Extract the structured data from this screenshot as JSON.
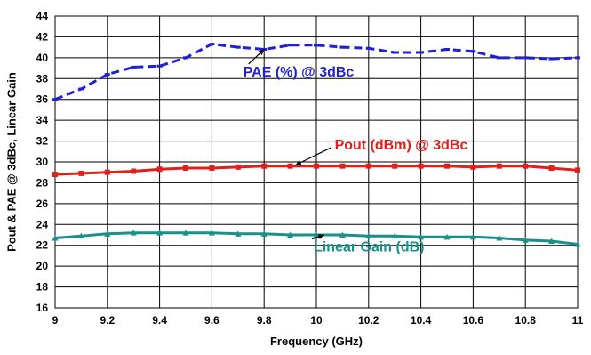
{
  "chart_data": {
    "type": "line",
    "xlabel": "Frequency (GHz)",
    "ylabel": "Pout  & PAE @ 3dBc, Linear  Gain",
    "xlim": [
      9,
      11
    ],
    "ylim": [
      16,
      44
    ],
    "x_ticks": [
      "9",
      "9.2",
      "9.4",
      "9.6",
      "9.8",
      "10",
      "10.2",
      "10.4",
      "10.6",
      "10.8",
      "11"
    ],
    "y_ticks": [
      "16",
      "18",
      "20",
      "22",
      "24",
      "26",
      "28",
      "30",
      "32",
      "34",
      "36",
      "38",
      "40",
      "42",
      "44"
    ],
    "grid": true,
    "series": [
      {
        "name": "PAE (%) @ 3dBc",
        "color": "#1f1fd4",
        "line_style": "dashed",
        "x": [
          9.0,
          9.1,
          9.2,
          9.3,
          9.4,
          9.5,
          9.6,
          9.7,
          9.8,
          9.9,
          10.0,
          10.1,
          10.2,
          10.3,
          10.4,
          10.5,
          10.6,
          10.7,
          10.8,
          10.9,
          11.0
        ],
        "values": [
          36.0,
          37.0,
          38.4,
          39.1,
          39.2,
          40.0,
          41.3,
          41.0,
          40.8,
          41.2,
          41.2,
          41.0,
          40.9,
          40.5,
          40.5,
          40.8,
          40.6,
          40.0,
          40.0,
          39.9,
          40.0
        ]
      },
      {
        "name": "Pout (dBm) @ 3dBc",
        "color": "#e0201a",
        "line_style": "solid",
        "x": [
          9.0,
          9.1,
          9.2,
          9.3,
          9.4,
          9.5,
          9.6,
          9.7,
          9.8,
          9.9,
          10.0,
          10.1,
          10.2,
          10.3,
          10.4,
          10.5,
          10.6,
          10.7,
          10.8,
          10.9,
          11.0
        ],
        "values": [
          28.8,
          28.9,
          29.0,
          29.1,
          29.3,
          29.4,
          29.4,
          29.5,
          29.6,
          29.6,
          29.6,
          29.6,
          29.6,
          29.6,
          29.6,
          29.6,
          29.5,
          29.6,
          29.6,
          29.4,
          29.2
        ]
      },
      {
        "name": "Linear Gain (dB)",
        "color": "#1a8f8c",
        "line_style": "solid",
        "x": [
          9.0,
          9.1,
          9.2,
          9.3,
          9.4,
          9.5,
          9.6,
          9.7,
          9.8,
          9.9,
          10.0,
          10.1,
          10.2,
          10.3,
          10.4,
          10.5,
          10.6,
          10.7,
          10.8,
          10.9,
          11.0
        ],
        "values": [
          22.7,
          22.9,
          23.1,
          23.2,
          23.2,
          23.2,
          23.2,
          23.1,
          23.1,
          23.0,
          23.0,
          23.0,
          22.9,
          22.9,
          22.8,
          22.8,
          22.8,
          22.7,
          22.5,
          22.4,
          22.1
        ]
      }
    ],
    "annotations": [
      {
        "text": "PAE (%) @ 3dBc",
        "color": "#1f1fd4",
        "anchor_x": 9.8,
        "anchor_y": 40.8,
        "text_x": 9.72,
        "text_y": 38.2
      },
      {
        "text": "Pout (dBm) @ 3dBc",
        "color": "#e0201a",
        "anchor_x": 9.92,
        "anchor_y": 29.7,
        "text_x": 10.07,
        "text_y": 31.2
      },
      {
        "text": "Linear Gain (dB)",
        "color": "#1a8f8c",
        "anchor_x": 10.03,
        "anchor_y": 23.0,
        "text_x": 9.99,
        "text_y": 21.4
      }
    ]
  }
}
